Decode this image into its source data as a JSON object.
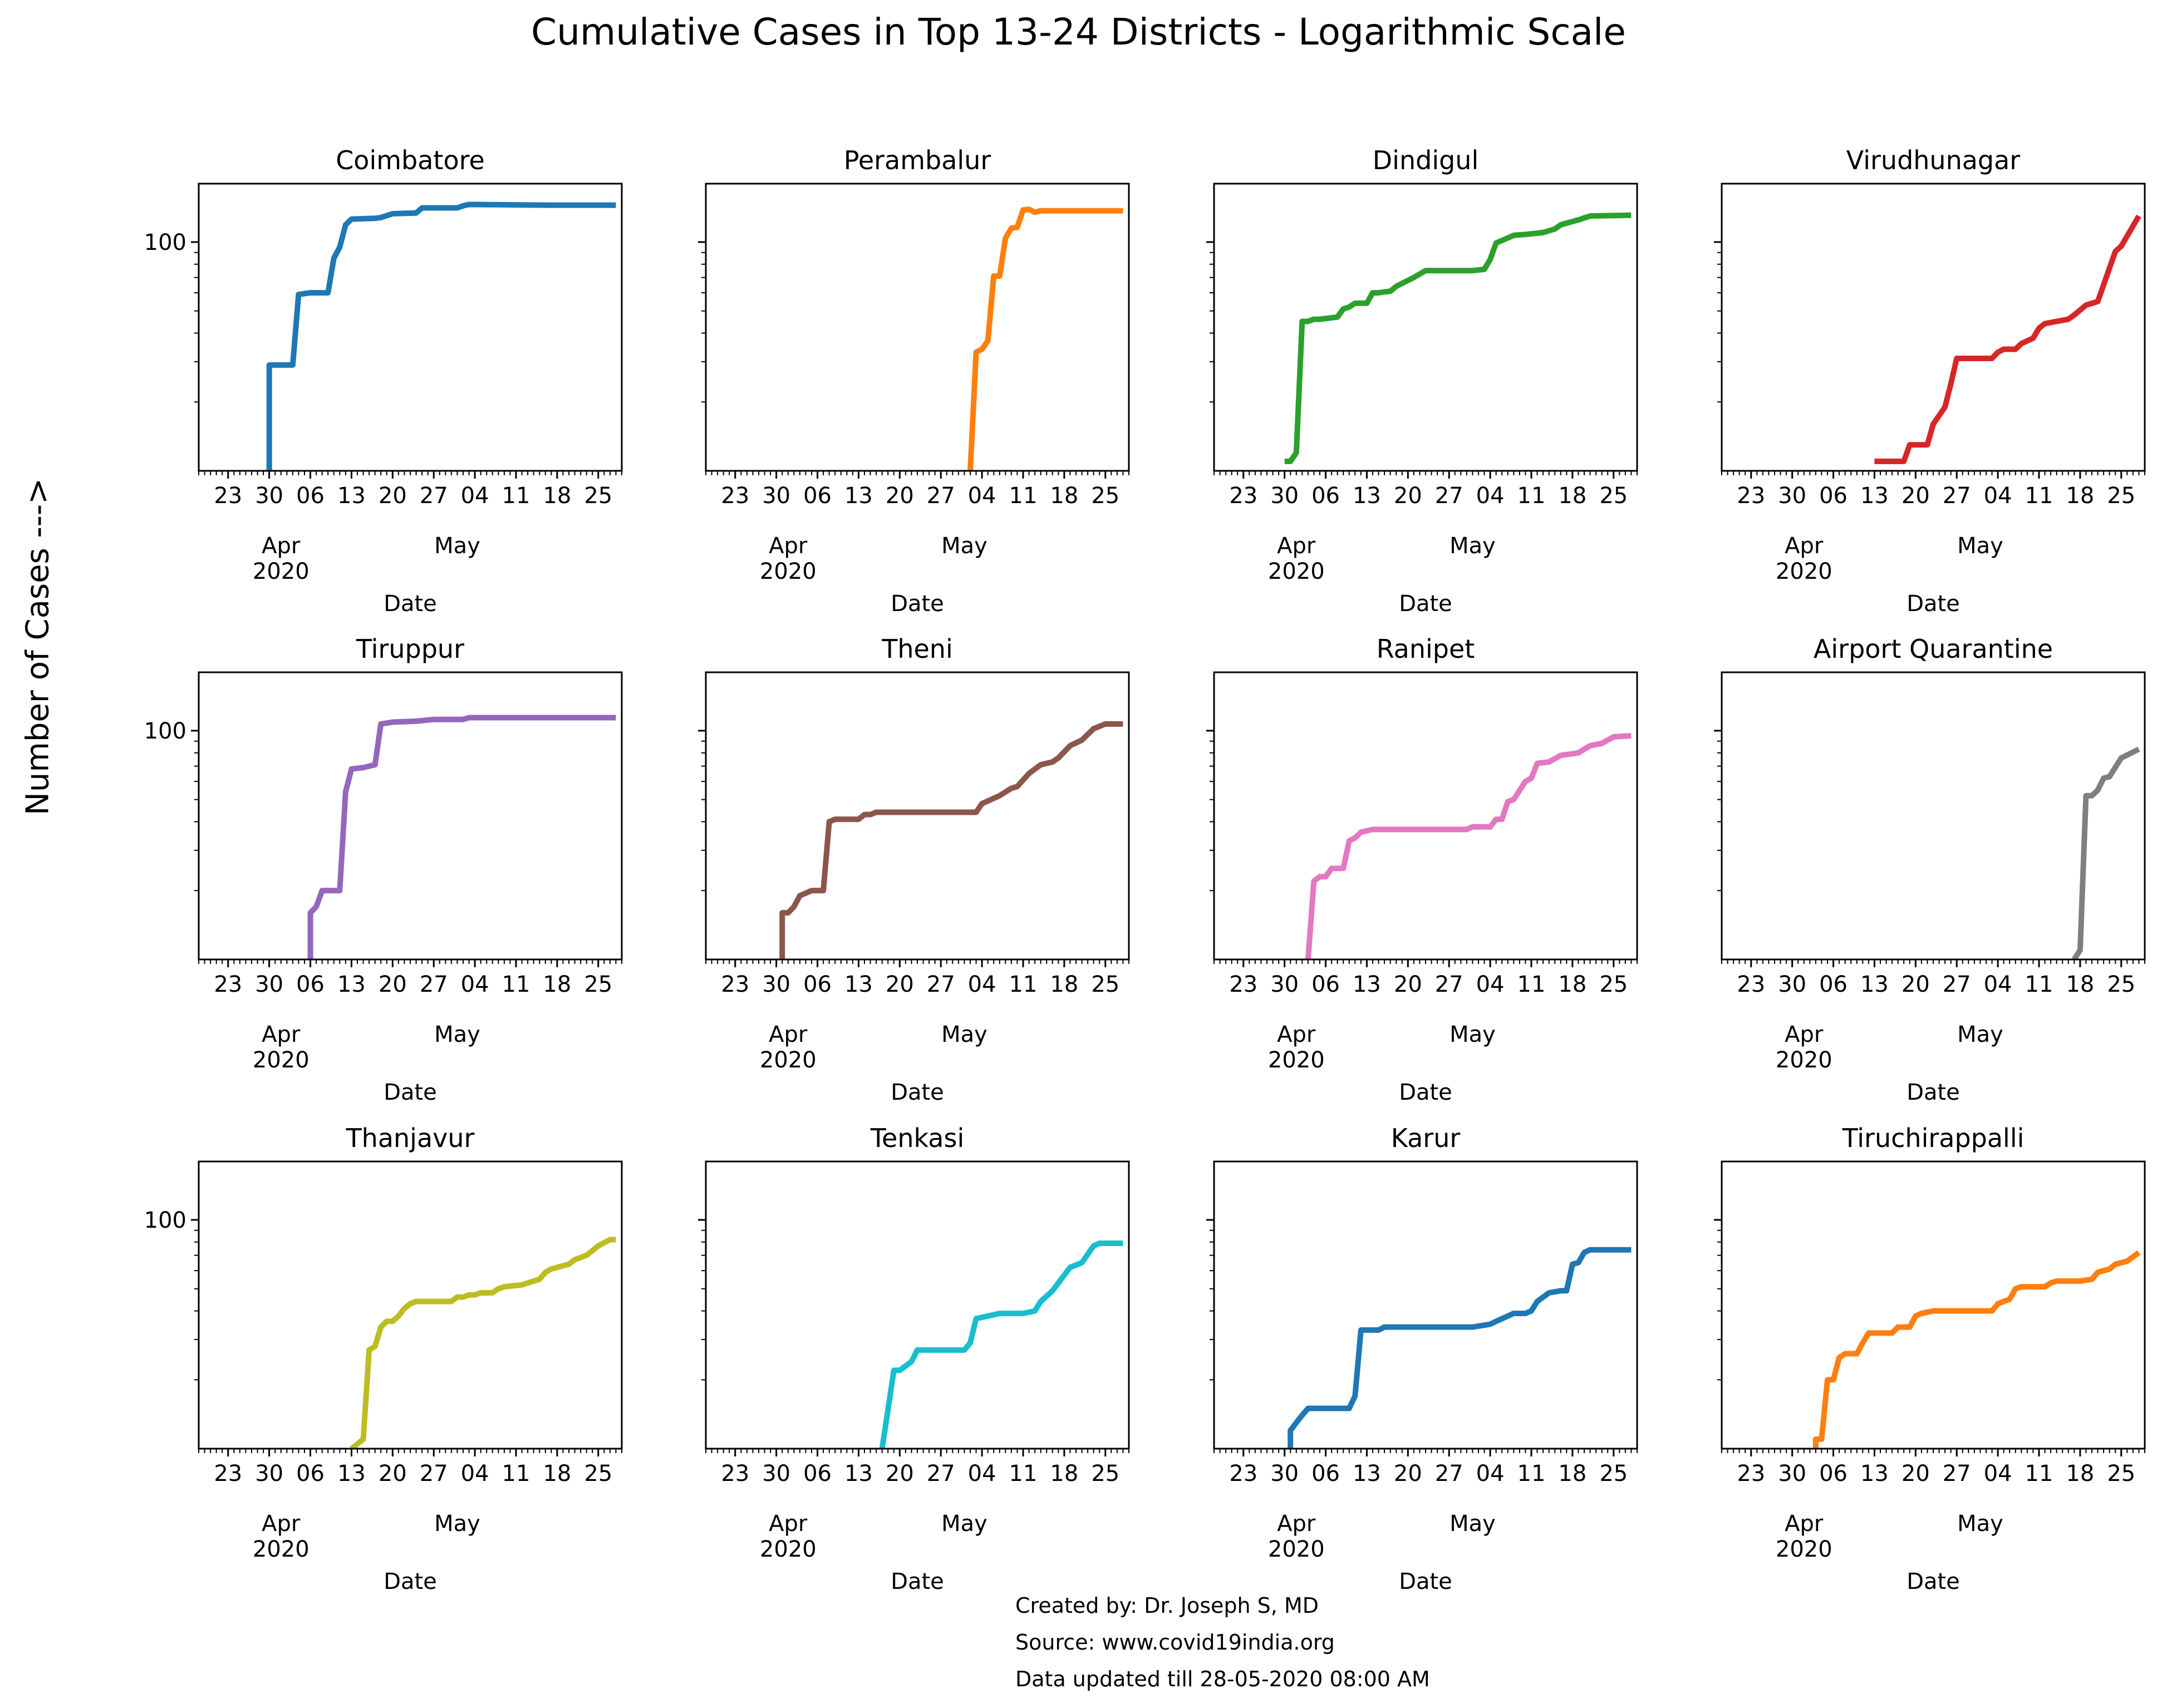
{
  "title": "Cumulative Cases in Top 13-24 Districts - Logarithmic Scale",
  "ylabel": "Number of Cases --->",
  "footer": {
    "created_by": "Created by: Dr. Joseph S, MD",
    "source": "Source: www.covid19india.org",
    "updated": "Data updated till 28-05-2020 08:00 AM"
  },
  "chart_data": [
    {
      "type": "line",
      "title": "Coimbatore",
      "xlabel": "Date",
      "ylabel": "",
      "color": "#1f77b4",
      "scale": "log",
      "ylim": [
        10,
        180
      ],
      "ytick_labels": [
        "100"
      ],
      "grid": false,
      "x_tick_labels": [
        "23",
        "30",
        "06",
        "13",
        "20",
        "27",
        "04",
        "11",
        "18",
        "25"
      ],
      "x_month_labels": [
        "Apr\n2020",
        "May"
      ],
      "xlim": [
        "2020-03-18",
        "2020-05-29"
      ],
      "x": [
        "2020-03-30",
        "2020-03-30",
        "2020-04-03",
        "2020-04-04",
        "2020-04-06",
        "2020-04-09",
        "2020-04-10",
        "2020-04-11",
        "2020-04-12",
        "2020-04-13",
        "2020-04-17",
        "2020-04-18",
        "2020-04-20",
        "2020-04-24",
        "2020-04-25",
        "2020-05-01",
        "2020-05-02",
        "2020-05-03",
        "2020-05-16",
        "2020-05-28"
      ],
      "y": [
        10,
        29,
        29,
        59,
        60,
        60,
        85,
        95,
        119,
        126,
        127,
        128,
        133,
        134,
        141,
        141,
        144,
        146,
        145,
        145
      ]
    },
    {
      "type": "line",
      "title": "Perambalur",
      "xlabel": "Date",
      "ylabel": "",
      "color": "#ff7f0e",
      "scale": "log",
      "ylim": [
        10,
        180
      ],
      "ytick_labels": [
        "100"
      ],
      "grid": false,
      "x_tick_labels": [
        "23",
        "30",
        "06",
        "13",
        "20",
        "27",
        "04",
        "11",
        "18",
        "25"
      ],
      "x_month_labels": [
        "Apr\n2020",
        "May"
      ],
      "xlim": [
        "2020-03-18",
        "2020-05-29"
      ],
      "x": [
        "2020-05-02",
        "2020-05-03",
        "2020-05-04",
        "2020-05-05",
        "2020-05-06",
        "2020-05-07",
        "2020-05-08",
        "2020-05-09",
        "2020-05-10",
        "2020-05-11",
        "2020-05-12",
        "2020-05-13",
        "2020-05-14",
        "2020-05-28"
      ],
      "y": [
        10,
        33,
        34,
        37,
        71,
        71,
        104,
        115,
        116,
        138,
        139,
        135,
        137,
        137
      ]
    },
    {
      "type": "line",
      "title": "Dindigul",
      "xlabel": "Date",
      "ylabel": "",
      "color": "#2ca02c",
      "scale": "log",
      "ylim": [
        10,
        180
      ],
      "ytick_labels": [
        "100"
      ],
      "grid": false,
      "x_tick_labels": [
        "23",
        "30",
        "06",
        "13",
        "20",
        "27",
        "04",
        "11",
        "18",
        "25"
      ],
      "x_month_labels": [
        "Apr\n2020",
        "May"
      ],
      "xlim": [
        "2020-03-18",
        "2020-05-29"
      ],
      "x": [
        "2020-03-30",
        "2020-03-31",
        "2020-04-01",
        "2020-04-02",
        "2020-04-03",
        "2020-04-04",
        "2020-04-05",
        "2020-04-08",
        "2020-04-09",
        "2020-04-10",
        "2020-04-11",
        "2020-04-13",
        "2020-04-14",
        "2020-04-15",
        "2020-04-17",
        "2020-04-18",
        "2020-04-20",
        "2020-04-21",
        "2020-04-23",
        "2020-05-01",
        "2020-05-03",
        "2020-05-04",
        "2020-05-05",
        "2020-05-08",
        "2020-05-10",
        "2020-05-13",
        "2020-05-15",
        "2020-05-16",
        "2020-05-19",
        "2020-05-21",
        "2020-05-28"
      ],
      "y": [
        11,
        11,
        12,
        45,
        45,
        46,
        46,
        47,
        51,
        52,
        54,
        54,
        60,
        60,
        61,
        64,
        68,
        70,
        75,
        75,
        76,
        84,
        99,
        107,
        108,
        110,
        114,
        119,
        125,
        130,
        131
      ]
    },
    {
      "type": "line",
      "title": "Virudhunagar",
      "xlabel": "Date",
      "ylabel": "",
      "color": "#d62728",
      "scale": "log",
      "ylim": [
        10,
        180
      ],
      "ytick_labels": [
        "100"
      ],
      "grid": false,
      "x_tick_labels": [
        "23",
        "30",
        "06",
        "13",
        "20",
        "27",
        "04",
        "11",
        "18",
        "25"
      ],
      "x_month_labels": [
        "Apr\n2020",
        "May"
      ],
      "xlim": [
        "2020-03-18",
        "2020-05-29"
      ],
      "x": [
        "2020-04-13",
        "2020-04-18",
        "2020-04-19",
        "2020-04-22",
        "2020-04-23",
        "2020-04-25",
        "2020-04-26",
        "2020-04-27",
        "2020-05-03",
        "2020-05-04",
        "2020-05-05",
        "2020-05-07",
        "2020-05-08",
        "2020-05-10",
        "2020-05-11",
        "2020-05-12",
        "2020-05-14",
        "2020-05-16",
        "2020-05-17",
        "2020-05-19",
        "2020-05-21",
        "2020-05-22",
        "2020-05-24",
        "2020-05-25",
        "2020-05-28"
      ],
      "y": [
        11,
        11,
        13,
        13,
        16,
        19,
        24,
        31,
        31,
        33,
        34,
        34,
        36,
        38,
        42,
        44,
        45,
        46,
        48,
        53,
        55,
        65,
        91,
        96,
        130
      ]
    },
    {
      "type": "line",
      "title": "Tiruppur",
      "xlabel": "Date",
      "ylabel": "",
      "color": "#9467bd",
      "scale": "log",
      "ylim": [
        10,
        180
      ],
      "ytick_labels": [
        "100"
      ],
      "grid": false,
      "x_tick_labels": [
        "23",
        "30",
        "06",
        "13",
        "20",
        "27",
        "04",
        "11",
        "18",
        "25"
      ],
      "x_month_labels": [
        "Apr\n2020",
        "May"
      ],
      "xlim": [
        "2020-03-18",
        "2020-05-29"
      ],
      "x": [
        "2020-04-06",
        "2020-04-06",
        "2020-04-07",
        "2020-04-08",
        "2020-04-11",
        "2020-04-12",
        "2020-04-13",
        "2020-04-15",
        "2020-04-17",
        "2020-04-18",
        "2020-04-20",
        "2020-04-24",
        "2020-04-27",
        "2020-05-02",
        "2020-05-03",
        "2020-05-28"
      ],
      "y": [
        10,
        16,
        17,
        20,
        20,
        54,
        68,
        69,
        71,
        107,
        109,
        110,
        112,
        112,
        114,
        114
      ]
    },
    {
      "type": "line",
      "title": "Theni",
      "xlabel": "Date",
      "ylabel": "",
      "color": "#8c564b",
      "scale": "log",
      "ylim": [
        10,
        180
      ],
      "ytick_labels": [
        "100"
      ],
      "grid": false,
      "x_tick_labels": [
        "23",
        "30",
        "06",
        "13",
        "20",
        "27",
        "04",
        "11",
        "18",
        "25"
      ],
      "x_month_labels": [
        "Apr\n2020",
        "May"
      ],
      "xlim": [
        "2020-03-18",
        "2020-05-29"
      ],
      "x": [
        "2020-03-31",
        "2020-03-31",
        "2020-04-01",
        "2020-04-02",
        "2020-04-03",
        "2020-04-05",
        "2020-04-07",
        "2020-04-08",
        "2020-04-09",
        "2020-04-13",
        "2020-04-14",
        "2020-04-15",
        "2020-04-16",
        "2020-05-03",
        "2020-05-04",
        "2020-05-07",
        "2020-05-09",
        "2020-05-10",
        "2020-05-12",
        "2020-05-14",
        "2020-05-16",
        "2020-05-17",
        "2020-05-19",
        "2020-05-21",
        "2020-05-23",
        "2020-05-25",
        "2020-05-28"
      ],
      "y": [
        10,
        16,
        16,
        17,
        19,
        20,
        20,
        40,
        41,
        41,
        43,
        43,
        44,
        44,
        48,
        52,
        56,
        57,
        65,
        71,
        73,
        76,
        86,
        91,
        102,
        107,
        107
      ]
    },
    {
      "type": "line",
      "title": "Ranipet",
      "xlabel": "Date",
      "ylabel": "",
      "color": "#e377c2",
      "scale": "log",
      "ylim": [
        10,
        180
      ],
      "ytick_labels": [
        "100"
      ],
      "grid": false,
      "x_tick_labels": [
        "23",
        "30",
        "06",
        "13",
        "20",
        "27",
        "04",
        "11",
        "18",
        "25"
      ],
      "x_month_labels": [
        "Apr\n2020",
        "May"
      ],
      "xlim": [
        "2020-03-18",
        "2020-05-29"
      ],
      "x": [
        "2020-04-03",
        "2020-04-04",
        "2020-04-05",
        "2020-04-06",
        "2020-04-07",
        "2020-04-08",
        "2020-04-09",
        "2020-04-10",
        "2020-04-11",
        "2020-04-12",
        "2020-04-14",
        "2020-04-30",
        "2020-05-01",
        "2020-05-04",
        "2020-05-05",
        "2020-05-06",
        "2020-05-07",
        "2020-05-08",
        "2020-05-10",
        "2020-05-11",
        "2020-05-12",
        "2020-05-14",
        "2020-05-16",
        "2020-05-19",
        "2020-05-21",
        "2020-05-23",
        "2020-05-25",
        "2020-05-28"
      ],
      "y": [
        10,
        22,
        23,
        23,
        25,
        25,
        25,
        33,
        34,
        36,
        37,
        37,
        38,
        38,
        41,
        41,
        49,
        50,
        60,
        62,
        72,
        73,
        78,
        80,
        86,
        88,
        94,
        95
      ]
    },
    {
      "type": "line",
      "title": "Airport Quarantine",
      "xlabel": "Date",
      "ylabel": "",
      "color": "#7f7f7f",
      "scale": "log",
      "ylim": [
        10,
        180
      ],
      "ytick_labels": [
        "100"
      ],
      "grid": false,
      "x_tick_labels": [
        "23",
        "30",
        "06",
        "13",
        "20",
        "27",
        "04",
        "11",
        "18",
        "25"
      ],
      "x_month_labels": [
        "Apr\n2020",
        "May"
      ],
      "xlim": [
        "2020-03-18",
        "2020-05-29"
      ],
      "x": [
        "2020-05-17",
        "2020-05-18",
        "2020-05-19",
        "2020-05-20",
        "2020-05-21",
        "2020-05-22",
        "2020-05-23",
        "2020-05-25",
        "2020-05-28"
      ],
      "y": [
        10,
        11,
        52,
        52,
        55,
        62,
        63,
        76,
        83
      ]
    },
    {
      "type": "line",
      "title": "Thanjavur",
      "xlabel": "Date",
      "ylabel": "",
      "color": "#bcbd22",
      "scale": "log",
      "ylim": [
        10,
        180
      ],
      "ytick_labels": [
        "100"
      ],
      "grid": false,
      "x_tick_labels": [
        "23",
        "30",
        "06",
        "13",
        "20",
        "27",
        "04",
        "11",
        "18",
        "25"
      ],
      "x_month_labels": [
        "Apr\n2020",
        "May"
      ],
      "xlim": [
        "2020-03-18",
        "2020-05-29"
      ],
      "x": [
        "2020-04-13",
        "2020-04-15",
        "2020-04-16",
        "2020-04-17",
        "2020-04-18",
        "2020-04-19",
        "2020-04-20",
        "2020-04-21",
        "2020-04-22",
        "2020-04-23",
        "2020-04-24",
        "2020-04-25",
        "2020-04-30",
        "2020-05-01",
        "2020-05-02",
        "2020-05-03",
        "2020-05-04",
        "2020-05-05",
        "2020-05-07",
        "2020-05-08",
        "2020-05-09",
        "2020-05-12",
        "2020-05-13",
        "2020-05-15",
        "2020-05-16",
        "2020-05-17",
        "2020-05-20",
        "2020-05-21",
        "2020-05-23",
        "2020-05-25",
        "2020-05-27",
        "2020-05-28"
      ],
      "y": [
        10,
        11,
        27,
        28,
        34,
        36,
        36,
        38,
        41,
        43,
        44,
        44,
        44,
        46,
        46,
        47,
        47,
        48,
        48,
        50,
        51,
        52,
        53,
        55,
        59,
        61,
        64,
        67,
        70,
        77,
        82,
        82
      ]
    },
    {
      "type": "line",
      "title": "Tenkasi",
      "xlabel": "Date",
      "ylabel": "",
      "color": "#17becf",
      "scale": "log",
      "ylim": [
        10,
        180
      ],
      "ytick_labels": [
        "100"
      ],
      "grid": false,
      "x_tick_labels": [
        "23",
        "30",
        "06",
        "13",
        "20",
        "27",
        "04",
        "11",
        "18",
        "25"
      ],
      "x_month_labels": [
        "Apr\n2020",
        "May"
      ],
      "xlim": [
        "2020-03-18",
        "2020-05-29"
      ],
      "x": [
        "2020-04-17",
        "2020-04-19",
        "2020-04-20",
        "2020-04-22",
        "2020-04-23",
        "2020-04-24",
        "2020-05-01",
        "2020-05-02",
        "2020-05-03",
        "2020-05-05",
        "2020-05-07",
        "2020-05-11",
        "2020-05-13",
        "2020-05-14",
        "2020-05-16",
        "2020-05-17",
        "2020-05-19",
        "2020-05-21",
        "2020-05-23",
        "2020-05-24",
        "2020-05-28"
      ],
      "y": [
        10,
        22,
        22,
        24,
        27,
        27,
        27,
        29,
        37,
        38,
        39,
        39,
        40,
        44,
        49,
        53,
        62,
        65,
        77,
        79,
        79
      ]
    },
    {
      "type": "line",
      "title": "Karur",
      "xlabel": "Date",
      "ylabel": "",
      "color": "#1f77b4",
      "scale": "log",
      "ylim": [
        10,
        180
      ],
      "ytick_labels": [
        "100"
      ],
      "grid": false,
      "x_tick_labels": [
        "23",
        "30",
        "06",
        "13",
        "20",
        "27",
        "04",
        "11",
        "18",
        "25"
      ],
      "x_month_labels": [
        "Apr\n2020",
        "May"
      ],
      "xlim": [
        "2020-03-18",
        "2020-05-29"
      ],
      "x": [
        "2020-03-31",
        "2020-03-31",
        "2020-04-01",
        "2020-04-02",
        "2020-04-03",
        "2020-04-04",
        "2020-04-10",
        "2020-04-11",
        "2020-04-12",
        "2020-04-15",
        "2020-04-16",
        "2020-04-30",
        "2020-05-01",
        "2020-05-04",
        "2020-05-05",
        "2020-05-07",
        "2020-05-08",
        "2020-05-10",
        "2020-05-11",
        "2020-05-12",
        "2020-05-14",
        "2020-05-16",
        "2020-05-17",
        "2020-05-18",
        "2020-05-19",
        "2020-05-20",
        "2020-05-21",
        "2020-05-28"
      ],
      "y": [
        10,
        12,
        13,
        14,
        15,
        15,
        15,
        17,
        33,
        33,
        34,
        34,
        34,
        35,
        36,
        38,
        39,
        39,
        40,
        44,
        48,
        49,
        49,
        64,
        65,
        72,
        74,
        74
      ]
    },
    {
      "type": "line",
      "title": "Tiruchirappalli",
      "xlabel": "Date",
      "ylabel": "",
      "color": "#ff7f0e",
      "scale": "log",
      "ylim": [
        10,
        180
      ],
      "ytick_labels": [
        "100"
      ],
      "grid": false,
      "x_tick_labels": [
        "23",
        "30",
        "06",
        "13",
        "20",
        "27",
        "04",
        "11",
        "18",
        "25"
      ],
      "x_month_labels": [
        "Apr\n2020",
        "May"
      ],
      "xlim": [
        "2020-03-18",
        "2020-05-29"
      ],
      "x": [
        "2020-04-03",
        "2020-04-03",
        "2020-04-04",
        "2020-04-05",
        "2020-04-06",
        "2020-04-07",
        "2020-04-08",
        "2020-04-10",
        "2020-04-11",
        "2020-04-12",
        "2020-04-16",
        "2020-04-17",
        "2020-04-19",
        "2020-04-20",
        "2020-04-21",
        "2020-04-23",
        "2020-05-03",
        "2020-05-04",
        "2020-05-06",
        "2020-05-07",
        "2020-05-08",
        "2020-05-12",
        "2020-05-13",
        "2020-05-14",
        "2020-05-18",
        "2020-05-20",
        "2020-05-21",
        "2020-05-23",
        "2020-05-24",
        "2020-05-26",
        "2020-05-28"
      ],
      "y": [
        10,
        11,
        11,
        20,
        20,
        25,
        26,
        26,
        29,
        32,
        32,
        34,
        34,
        38,
        39,
        40,
        40,
        43,
        45,
        50,
        51,
        51,
        53,
        54,
        54,
        55,
        59,
        61,
        64,
        66,
        72
      ]
    }
  ]
}
